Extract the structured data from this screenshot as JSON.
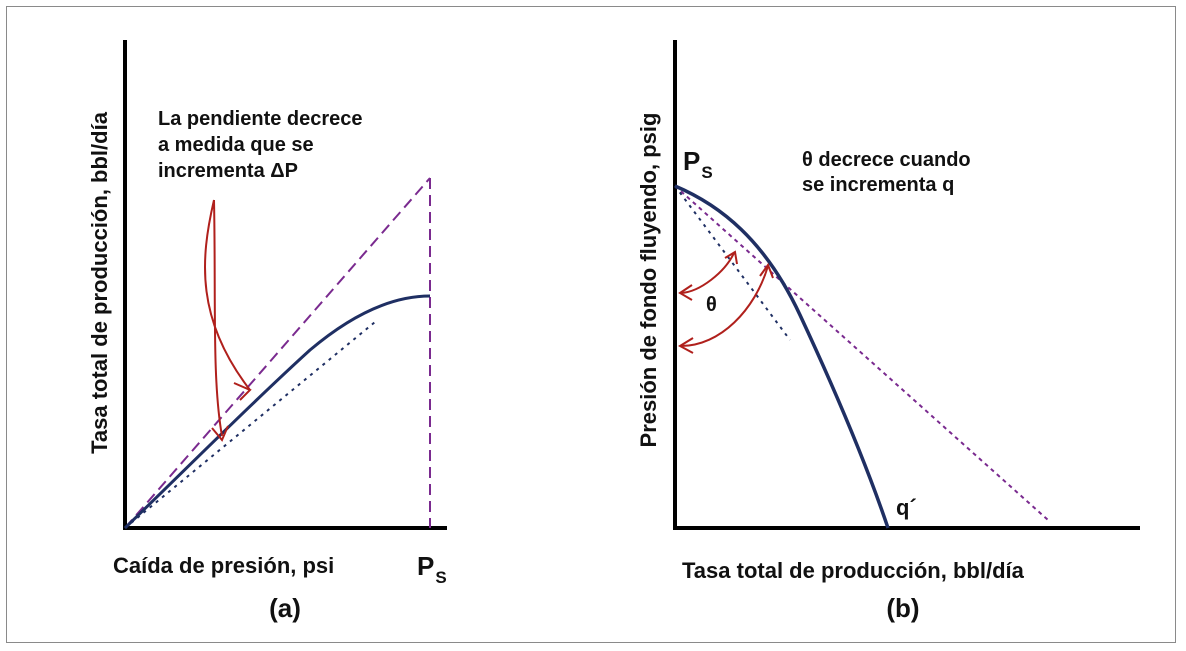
{
  "panel_a": {
    "annotation_lines": [
      "La pendiente decrece",
      "a medida que se",
      "incrementa ΔP"
    ],
    "ylabel": "Tasa total de producción, bbl/día",
    "xlabel": "Caída de presión, psi",
    "ps_main": "P",
    "ps_sub": "S",
    "caption": "(a)"
  },
  "panel_b": {
    "annotation_lines": [
      "θ decrece cuando",
      "se incrementa q"
    ],
    "ylabel": "Presión de fondo fluyendo, psig",
    "xlabel": "Tasa total de producción, bbl/día",
    "ps_main": "P",
    "ps_sub": "S",
    "theta": "θ",
    "qprime": "q´",
    "caption": "(b)"
  },
  "colors": {
    "axis": "#000000",
    "curve": "#1f2f63",
    "dashed": "#7a2a8f",
    "arrow": "#b0201c"
  }
}
